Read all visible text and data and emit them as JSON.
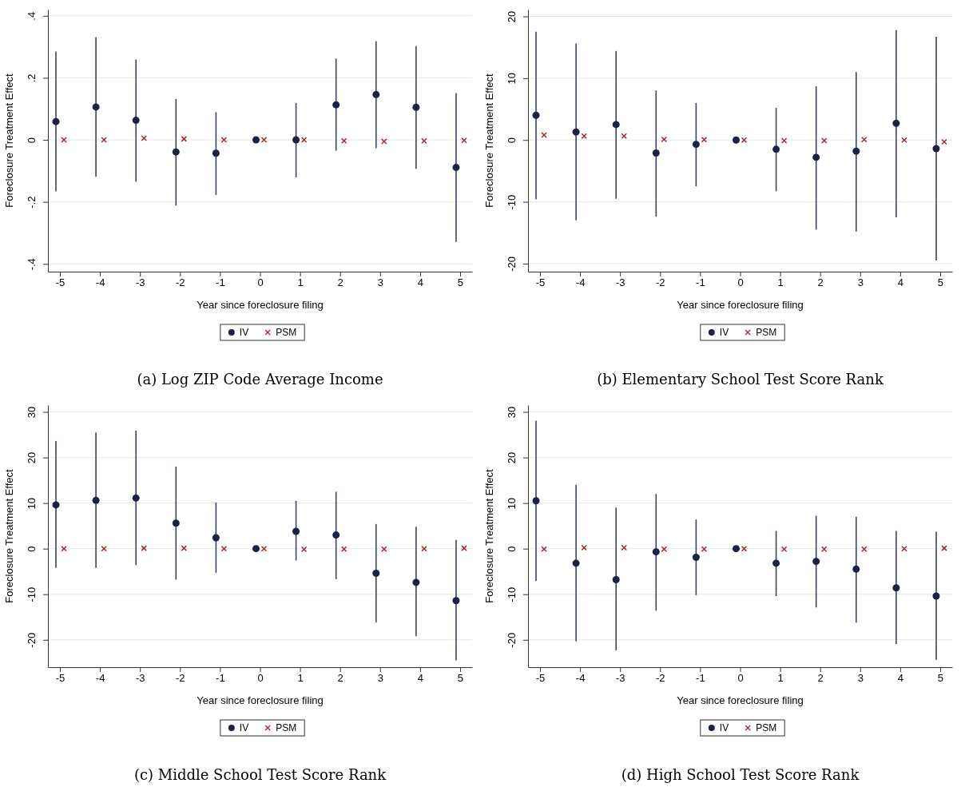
{
  "chart_data": [
    {
      "type": "scatter",
      "title": "(a) Log ZIP Code Average Income",
      "xlabel": "Year since foreclosure filing",
      "ylabel": "Foreclosure Treatment Effect",
      "xlim": [
        -5.3,
        5.3
      ],
      "xticks": [
        -5,
        -4,
        -3,
        -2,
        -1,
        0,
        1,
        2,
        3,
        4,
        5
      ],
      "ylim": [
        -0.425,
        0.42
      ],
      "yticks": [
        {
          "value": -0.4,
          "label": "-.4"
        },
        {
          "value": -0.2,
          "label": "-.2"
        },
        0,
        {
          "value": 0.2,
          "label": ".2"
        },
        {
          "value": 0.4,
          "label": ".4"
        }
      ],
      "grid": "y",
      "legend": "bottom",
      "series": [
        {
          "name": "IV",
          "color": "#1b2345",
          "marker": "circle",
          "x": [
            -5.1,
            -4.1,
            -3.1,
            -2.1,
            -1.1,
            -0.1,
            0.9,
            1.9,
            2.9,
            3.9,
            4.9
          ],
          "values": [
            0.059,
            0.106,
            0.063,
            -0.039,
            -0.043,
            0,
            0,
            0.113,
            0.146,
            0.105,
            -0.089
          ],
          "errors": [
            [
              -0.166,
              0.285
            ],
            [
              -0.119,
              0.331
            ],
            [
              -0.135,
              0.259
            ],
            [
              -0.212,
              0.132
            ],
            [
              -0.178,
              0.089
            ],
            null,
            [
              -0.121,
              0.119
            ],
            [
              -0.035,
              0.262
            ],
            [
              -0.027,
              0.318
            ],
            [
              -0.093,
              0.302
            ],
            [
              -0.329,
              0.151
            ]
          ]
        },
        {
          "name": "PSM",
          "color": "#9e2a2f",
          "marker": "cross",
          "x": [
            -4.9,
            -3.9,
            -2.9,
            -1.9,
            -0.9,
            0.1,
            1.1,
            2.1,
            3.1,
            4.1,
            5.1
          ],
          "values": [
            0,
            0,
            0.005,
            0.003,
            0,
            0,
            0,
            -0.003,
            -0.005,
            -0.003,
            -0.002
          ]
        }
      ]
    },
    {
      "type": "scatter",
      "title": "(b) Elementary School Test Score Rank",
      "xlabel": "Year since foreclosure filing",
      "ylabel": "Foreclosure Treatment Effect",
      "xlim": [
        -5.3,
        5.3
      ],
      "xticks": [
        -5,
        -4,
        -3,
        -2,
        -1,
        0,
        1,
        2,
        3,
        4,
        5
      ],
      "ylim": [
        -21.3,
        21.1
      ],
      "yticks": [
        -20,
        -10,
        0,
        10,
        20
      ],
      "grid": "y",
      "legend": "bottom",
      "series": [
        {
          "name": "IV",
          "color": "#1b2345",
          "marker": "circle",
          "x": [
            -5.1,
            -4.1,
            -3.1,
            -2.1,
            -1.1,
            -0.1,
            0.9,
            1.9,
            2.9,
            3.9,
            4.9
          ],
          "values": [
            4,
            1.3,
            2.5,
            -2.1,
            -0.7,
            0,
            -1.5,
            -2.8,
            -1.8,
            2.7,
            -1.4
          ],
          "errors": [
            [
              -9.6,
              17.5
            ],
            [
              -13,
              15.6
            ],
            [
              -9.5,
              14.4
            ],
            [
              -12.4,
              8
            ],
            [
              -7.5,
              6
            ],
            null,
            [
              -8.3,
              5.2
            ],
            [
              -14.5,
              8.7
            ],
            [
              -14.8,
              11
            ],
            [
              -12.5,
              17.8
            ],
            [
              -19.5,
              16.7
            ]
          ]
        },
        {
          "name": "PSM",
          "color": "#9e2a2f",
          "marker": "cross",
          "x": [
            -4.9,
            -3.9,
            -2.9,
            -1.9,
            -0.9,
            0.1,
            1.1,
            2.1,
            3.1,
            4.1,
            5.1
          ],
          "values": [
            0.8,
            0.65,
            0.65,
            0.1,
            0.05,
            0,
            -0.1,
            -0.1,
            0.05,
            0,
            -0.3
          ]
        }
      ]
    },
    {
      "type": "scatter",
      "title": "(c) Middle School Test Score Rank",
      "xlabel": "Year since foreclosure filing",
      "ylabel": "Foreclosure Treatment Effect",
      "xlim": [
        -5.3,
        5.3
      ],
      "xticks": [
        -5,
        -4,
        -3,
        -2,
        -1,
        0,
        1,
        2,
        3,
        4,
        5
      ],
      "ylim": [
        -26,
        31.5
      ],
      "yticks": [
        -20,
        -10,
        0,
        10,
        20,
        30
      ],
      "grid": "y",
      "legend": "bottom",
      "series": [
        {
          "name": "IV",
          "color": "#1b2345",
          "marker": "circle",
          "x": [
            -5.1,
            -4.1,
            -3.1,
            -2.1,
            -1.1,
            -0.1,
            0.9,
            1.9,
            2.9,
            3.9,
            4.9
          ],
          "values": [
            9.6,
            10.6,
            11.1,
            5.6,
            2.4,
            0,
            3.8,
            3,
            -5.4,
            -7.4,
            -11.4
          ],
          "errors": [
            [
              -4.2,
              23.6
            ],
            [
              -4.2,
              25.5
            ],
            [
              -3.6,
              25.9
            ],
            [
              -6.8,
              18
            ],
            [
              -5.3,
              10.1
            ],
            null,
            [
              -2.6,
              10.5
            ],
            [
              -6.7,
              12.5
            ],
            [
              -16.2,
              5.4
            ],
            [
              -19.2,
              4.8
            ],
            [
              -24.5,
              1.9
            ]
          ]
        },
        {
          "name": "PSM",
          "color": "#9e2a2f",
          "marker": "cross",
          "x": [
            -4.9,
            -3.9,
            -2.9,
            -1.9,
            -0.9,
            0.1,
            1.1,
            2.1,
            3.1,
            4.1,
            5.1
          ],
          "values": [
            0,
            0,
            0.1,
            0.1,
            0,
            0,
            -0.15,
            -0.1,
            -0.1,
            0,
            0.1
          ]
        }
      ]
    },
    {
      "type": "scatter",
      "title": "(d) High School Test Score Rank",
      "xlabel": "Year since foreclosure filing",
      "ylabel": "Foreclosure Treatment Effect",
      "xlim": [
        -5.3,
        5.3
      ],
      "xticks": [
        -5,
        -4,
        -3,
        -2,
        -1,
        0,
        1,
        2,
        3,
        4,
        5
      ],
      "ylim": [
        -26,
        31.5
      ],
      "yticks": [
        -20,
        -10,
        0,
        10,
        20,
        30
      ],
      "grid": "y",
      "legend": "bottom",
      "series": [
        {
          "name": "IV",
          "color": "#1b2345",
          "marker": "circle",
          "x": [
            -5.1,
            -4.1,
            -3.1,
            -2.1,
            -1.1,
            -0.1,
            0.9,
            1.9,
            2.9,
            3.9,
            4.9
          ],
          "values": [
            10.5,
            -3.2,
            -6.8,
            -0.7,
            -1.9,
            0,
            -3.2,
            -2.8,
            -4.5,
            -8.6,
            -10.4
          ],
          "errors": [
            [
              -7.1,
              28.1
            ],
            [
              -20.3,
              14
            ],
            [
              -22.3,
              9
            ],
            [
              -13.6,
              12
            ],
            [
              -10.2,
              6.4
            ],
            null,
            [
              -10.4,
              3.9
            ],
            [
              -12.9,
              7.2
            ],
            [
              -16.2,
              7
            ],
            [
              -20.9,
              3.9
            ],
            [
              -24.4,
              3.7
            ]
          ]
        },
        {
          "name": "PSM",
          "color": "#9e2a2f",
          "marker": "cross",
          "x": [
            -4.9,
            -3.9,
            -2.9,
            -1.9,
            -0.9,
            0.1,
            1.1,
            2.1,
            3.1,
            4.1,
            5.1
          ],
          "values": [
            -0.1,
            0.2,
            0.2,
            -0.1,
            -0.1,
            0,
            -0.1,
            -0.1,
            -0.1,
            0,
            0.1
          ]
        }
      ]
    }
  ]
}
